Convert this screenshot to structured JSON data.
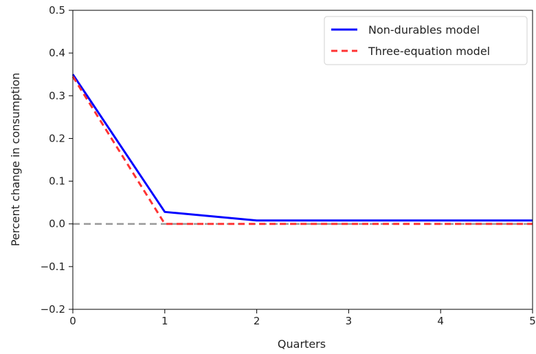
{
  "chart_data": {
    "type": "line",
    "title": "",
    "xlabel": "Quarters",
    "ylabel": "Percent change in consumption",
    "xlim": [
      0,
      5
    ],
    "ylim": [
      -0.2,
      0.5
    ],
    "xticks": [
      0,
      1,
      2,
      3,
      4,
      5
    ],
    "xtick_labels": [
      "0",
      "1",
      "2",
      "3",
      "4",
      "5"
    ],
    "yticks": [
      -0.2,
      -0.1,
      0.0,
      0.1,
      0.2,
      0.3,
      0.4,
      0.5
    ],
    "ytick_labels": [
      "−0.2",
      "−0.1",
      "0.0",
      "0.1",
      "0.2",
      "0.3",
      "0.4",
      "0.5"
    ],
    "grid": false,
    "legend_position": "top-right",
    "x": [
      0,
      1,
      2,
      3,
      4,
      5
    ],
    "series": [
      {
        "name": "Non-durables model",
        "values": [
          0.35,
          0.028,
          0.008,
          0.008,
          0.008,
          0.008
        ],
        "color": "#0000ff",
        "style": "solid"
      },
      {
        "name": "Three-equation model",
        "values": [
          0.345,
          0.0,
          0.0,
          0.0,
          0.0,
          0.0
        ],
        "color": "#ff3333",
        "style": "dashed"
      }
    ],
    "reference_lines": [
      {
        "axis": "y",
        "value": 0.0,
        "color": "#999999",
        "style": "dashed"
      }
    ]
  }
}
